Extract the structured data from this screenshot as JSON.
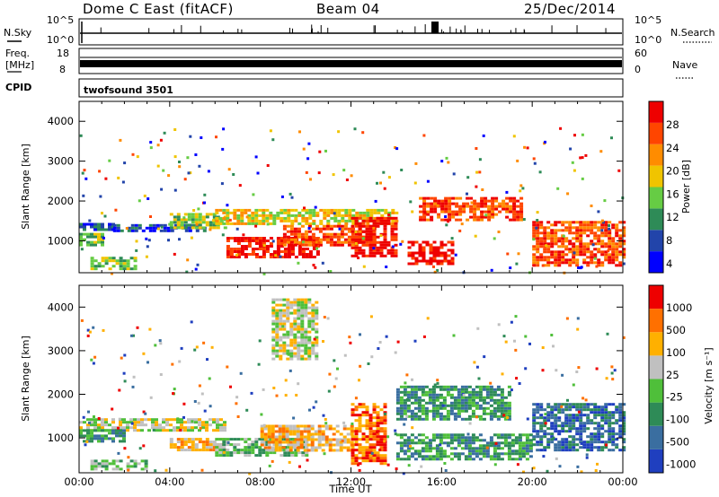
{
  "header": {
    "station": "Dome C East (fitACF)",
    "beam": "Beam 04",
    "date": "25/Dec/2014"
  },
  "strips": {
    "nsky_label": "N.Sky",
    "nsky_ticks": [
      "10^5",
      "10^0"
    ],
    "nsearch_label": "N.Search",
    "nsearch_ticks": [
      "10^5",
      "10^0"
    ],
    "freq_label_1": "Freq.",
    "freq_label_2": "[MHz]",
    "freq_ticks": [
      "18",
      "8"
    ],
    "nave_label": "Nave",
    "nave_ticks": [
      "60",
      "0"
    ],
    "cpid_label": "CPID",
    "cpid_value": "twofsound 3501"
  },
  "chart_data": [
    {
      "type": "heatmap",
      "name": "power",
      "ylabel": "Slant Range [km]",
      "yticks": [
        1000,
        2000,
        3000,
        4000
      ],
      "ylim": [
        200,
        4500
      ],
      "xlim": [
        0,
        24
      ],
      "colorbar_label": "Power [dB]",
      "colorbar_ticks": [
        "28",
        "24",
        "20",
        "16",
        "12",
        "8",
        "4"
      ],
      "colors": [
        "#0000ff",
        "#2244aa",
        "#2e8b57",
        "#66cc44",
        "#f0c400",
        "#ff8c00",
        "#ff4500",
        "#ee0000"
      ],
      "bands": [
        {
          "t": [
            0.0,
            1.5
          ],
          "r": [
            1250,
            1450
          ],
          "level": 1
        },
        {
          "t": [
            0.0,
            1.0
          ],
          "r": [
            900,
            1200
          ],
          "level": 3
        },
        {
          "t": [
            0.5,
            2.5
          ],
          "r": [
            300,
            600
          ],
          "level": 3
        },
        {
          "t": [
            1.5,
            5.5
          ],
          "r": [
            1280,
            1420
          ],
          "level": 1
        },
        {
          "t": [
            4.0,
            6.5
          ],
          "r": [
            1350,
            1700
          ],
          "level": 3
        },
        {
          "t": [
            6.0,
            14.0
          ],
          "r": [
            1400,
            1800
          ],
          "level": 4
        },
        {
          "t": [
            6.5,
            10.5
          ],
          "r": [
            600,
            1100
          ],
          "level": 7
        },
        {
          "t": [
            9.0,
            13.0
          ],
          "r": [
            900,
            1400
          ],
          "level": 6
        },
        {
          "t": [
            12.0,
            14.0
          ],
          "r": [
            600,
            1600
          ],
          "level": 7
        },
        {
          "t": [
            14.5,
            16.5
          ],
          "r": [
            400,
            1000
          ],
          "level": 7
        },
        {
          "t": [
            15.0,
            19.5
          ],
          "r": [
            1500,
            2100
          ],
          "level": 6
        },
        {
          "t": [
            20.0,
            24.0
          ],
          "r": [
            400,
            1500
          ],
          "level": 6
        }
      ]
    },
    {
      "type": "heatmap",
      "name": "velocity",
      "ylabel": "Slant Range [km]",
      "xlabel": "Time UT",
      "yticks": [
        1000,
        2000,
        3000,
        4000
      ],
      "ylim": [
        200,
        4500
      ],
      "xlim": [
        0,
        24
      ],
      "xticks": [
        "00:00",
        "04:00",
        "08:00",
        "12:00",
        "16:00",
        "20:00",
        "00:00"
      ],
      "colorbar_label": "Velocity [m s⁻¹]",
      "colorbar_ticks": [
        "1000",
        "500",
        "100",
        "25",
        "-25",
        "-100",
        "-500",
        "-1000"
      ],
      "colors": [
        "#1f3fbf",
        "#3a6ea0",
        "#2e8b57",
        "#4fbf3a",
        "#c0c0c0",
        "#ffb000",
        "#ff7000",
        "#ee0000"
      ],
      "bands": [
        {
          "t": [
            0.0,
            6.5
          ],
          "r": [
            1200,
            1450
          ],
          "level": 4
        },
        {
          "t": [
            0.0,
            2.0
          ],
          "r": [
            900,
            1200
          ],
          "level": 2
        },
        {
          "t": [
            0.5,
            3.0
          ],
          "r": [
            300,
            500
          ],
          "level": 3
        },
        {
          "t": [
            4.0,
            6.5
          ],
          "r": [
            700,
            1000
          ],
          "level": 5
        },
        {
          "t": [
            6.0,
            10.0
          ],
          "r": [
            600,
            1000
          ],
          "level": 3
        },
        {
          "t": [
            8.0,
            12.0
          ],
          "r": [
            700,
            1300
          ],
          "level": 5
        },
        {
          "t": [
            12.0,
            13.5
          ],
          "r": [
            400,
            1800
          ],
          "level": 6
        },
        {
          "t": [
            8.5,
            10.5
          ],
          "r": [
            2800,
            4200
          ],
          "level": 4
        },
        {
          "t": [
            14.0,
            19.0
          ],
          "r": [
            1400,
            2200
          ],
          "level": 2
        },
        {
          "t": [
            14.0,
            20.0
          ],
          "r": [
            500,
            1100
          ],
          "level": 2
        },
        {
          "t": [
            20.0,
            24.0
          ],
          "r": [
            700,
            1800
          ],
          "level": 1
        }
      ]
    }
  ]
}
